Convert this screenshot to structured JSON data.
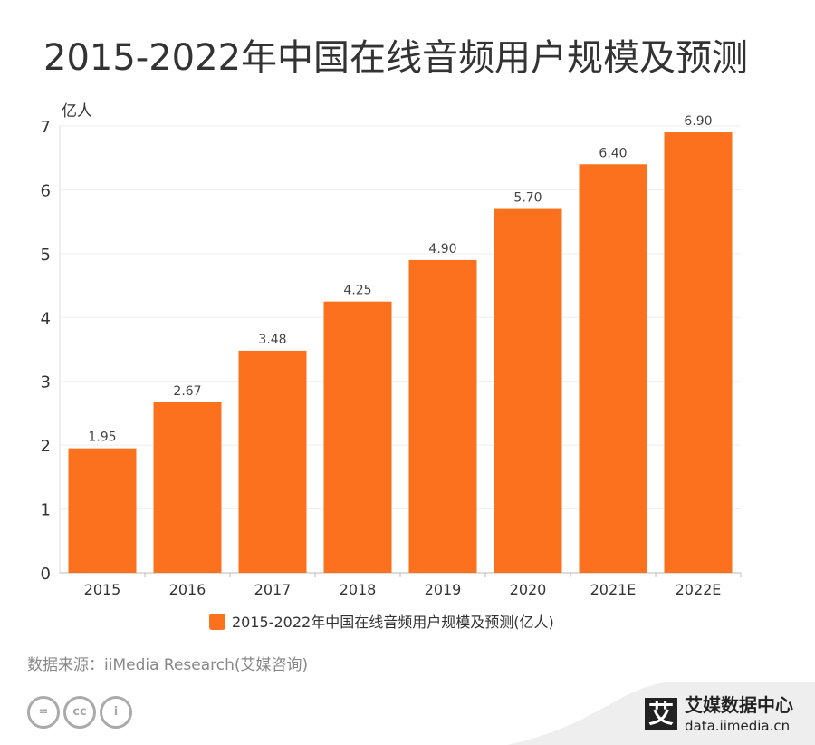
{
  "title": "2015-2022年中国在线音频用户规模及预测",
  "source": "数据来源：iiMedia Research(艾媒咨询)",
  "brand": {
    "name": "艾媒数据中心",
    "url": "data.iimedia.cn",
    "mark": "艾"
  },
  "license_icons": [
    "nd-icon",
    "cc-icon",
    "by-icon"
  ],
  "chart_data": {
    "type": "bar",
    "title": "2015-2022年中国在线音频用户规模及预测",
    "ylabel": "亿人",
    "ylim": [
      0,
      7
    ],
    "yticks": [
      "0",
      "1",
      "2",
      "3",
      "4",
      "5",
      "6",
      "7"
    ],
    "grid": true,
    "legend_position": "bottom",
    "categories": [
      "2015",
      "2016",
      "2017",
      "2018",
      "2019",
      "2020",
      "2021E",
      "2022E"
    ],
    "series": [
      {
        "name": "2015-2022年中国在线音频用户规模及预测(亿人)",
        "values": [
          1.95,
          2.67,
          3.48,
          4.25,
          4.9,
          5.7,
          6.4,
          6.9
        ],
        "labels": [
          "1.95",
          "2.67",
          "3.48",
          "4.25",
          "4.90",
          "5.70",
          "6.40",
          "6.90"
        ],
        "color": "#fc711d"
      }
    ]
  }
}
